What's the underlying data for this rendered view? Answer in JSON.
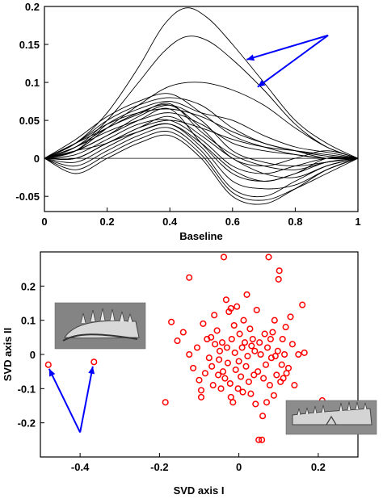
{
  "chart_data": [
    {
      "type": "line",
      "title": "",
      "xlabel": "Baseline",
      "ylabel": "",
      "xlim": [
        0,
        1
      ],
      "ylim": [
        -0.07,
        0.2
      ],
      "x_ticks": [
        "0",
        "0.2",
        "0.4",
        "0.6",
        "0.8",
        "1"
      ],
      "y_ticks": [
        "-0.05",
        "0",
        "0.05",
        "0.1",
        "0.15",
        "0.2"
      ],
      "line_color": "#000000",
      "arrow_color": "#0000ff",
      "grid": false,
      "series": [
        {
          "x": [
            0,
            0.1,
            0.2,
            0.3,
            0.38,
            0.45,
            0.52,
            0.6,
            0.7,
            0.8,
            0.9,
            1.0
          ],
          "y": [
            0,
            0.02,
            0.06,
            0.12,
            0.175,
            0.198,
            0.185,
            0.15,
            0.1,
            0.05,
            0.02,
            0
          ]
        },
        {
          "x": [
            0,
            0.1,
            0.2,
            0.3,
            0.38,
            0.45,
            0.52,
            0.6,
            0.7,
            0.8,
            0.9,
            1.0
          ],
          "y": [
            0,
            0.015,
            0.05,
            0.1,
            0.14,
            0.16,
            0.155,
            0.13,
            0.09,
            0.045,
            0.015,
            0
          ]
        },
        {
          "x": [
            0,
            0.1,
            0.2,
            0.3,
            0.4,
            0.5,
            0.6,
            0.7,
            0.8,
            0.9,
            1.0
          ],
          "y": [
            0,
            0.01,
            0.04,
            0.07,
            0.095,
            0.1,
            0.09,
            0.07,
            0.04,
            0.015,
            0
          ]
        },
        {
          "x": [
            0,
            0.1,
            0.2,
            0.3,
            0.4,
            0.5,
            0.6,
            0.7,
            0.8,
            0.9,
            1.0
          ],
          "y": [
            0,
            0.01,
            0.045,
            0.065,
            0.075,
            0.06,
            0.05,
            0.03,
            0.015,
            0.008,
            0
          ]
        },
        {
          "x": [
            0,
            0.1,
            0.2,
            0.3,
            0.4,
            0.5,
            0.6,
            0.7,
            0.8,
            0.9,
            1.0
          ],
          "y": [
            0,
            0.02,
            0.04,
            0.06,
            0.07,
            0.04,
            0.0,
            -0.01,
            0.0,
            0.01,
            0
          ]
        },
        {
          "x": [
            0,
            0.1,
            0.2,
            0.3,
            0.4,
            0.5,
            0.6,
            0.7,
            0.8,
            0.9,
            1.0
          ],
          "y": [
            0,
            0.01,
            0.03,
            0.05,
            0.065,
            0.02,
            -0.02,
            -0.03,
            -0.02,
            0.0,
            0
          ]
        },
        {
          "x": [
            0,
            0.1,
            0.2,
            0.3,
            0.4,
            0.5,
            0.6,
            0.7,
            0.8,
            0.9,
            1.0
          ],
          "y": [
            0,
            -0.01,
            0.01,
            0.03,
            0.04,
            0.01,
            -0.04,
            -0.05,
            -0.03,
            -0.01,
            0
          ]
        },
        {
          "x": [
            0,
            0.1,
            0.2,
            0.3,
            0.4,
            0.5,
            0.6,
            0.7,
            0.8,
            0.9,
            1.0
          ],
          "y": [
            0,
            0.02,
            0.05,
            0.07,
            0.08,
            0.07,
            0.04,
            0.02,
            0.01,
            0.0,
            0
          ]
        },
        {
          "x": [
            0,
            0.1,
            0.2,
            0.3,
            0.4,
            0.5,
            0.6,
            0.7,
            0.8,
            0.9,
            1.0
          ],
          "y": [
            0,
            0.0,
            0.02,
            0.04,
            0.055,
            0.03,
            0.0,
            -0.02,
            -0.025,
            -0.01,
            0
          ]
        },
        {
          "x": [
            0,
            0.1,
            0.2,
            0.3,
            0.4,
            0.5,
            0.6,
            0.7,
            0.8,
            0.9,
            1.0
          ],
          "y": [
            0,
            0.015,
            0.035,
            0.05,
            0.06,
            0.045,
            0.02,
            0.01,
            0.005,
            0.0,
            0
          ]
        },
        {
          "x": [
            0,
            0.1,
            0.2,
            0.3,
            0.4,
            0.5,
            0.6,
            0.7,
            0.8,
            0.9,
            1.0
          ],
          "y": [
            0,
            -0.02,
            0.0,
            0.02,
            0.03,
            0.0,
            -0.05,
            -0.06,
            -0.04,
            -0.015,
            0
          ]
        },
        {
          "x": [
            0,
            0.1,
            0.2,
            0.3,
            0.4,
            0.5,
            0.6,
            0.7,
            0.8,
            0.9,
            1.0
          ],
          "y": [
            0,
            0.025,
            0.055,
            0.075,
            0.085,
            0.06,
            0.03,
            0.015,
            0.005,
            0.0,
            0
          ]
        },
        {
          "x": [
            0,
            0.1,
            0.2,
            0.3,
            0.4,
            0.5,
            0.6,
            0.7,
            0.8,
            0.9,
            1.0
          ],
          "y": [
            0,
            0.005,
            0.025,
            0.045,
            0.05,
            0.025,
            -0.01,
            -0.02,
            -0.01,
            0.0,
            0
          ]
        },
        {
          "x": [
            0,
            0.1,
            0.2,
            0.3,
            0.4,
            0.5,
            0.6,
            0.7,
            0.8,
            0.9,
            1.0
          ],
          "y": [
            0,
            0.01,
            0.03,
            0.055,
            0.07,
            0.05,
            0.01,
            -0.005,
            -0.01,
            -0.005,
            0
          ]
        },
        {
          "x": [
            0,
            0.1,
            0.2,
            0.3,
            0.4,
            0.5,
            0.6,
            0.7,
            0.8,
            0.9,
            1.0
          ],
          "y": [
            0,
            -0.005,
            0.015,
            0.035,
            0.045,
            0.015,
            -0.03,
            -0.04,
            -0.035,
            -0.015,
            0
          ]
        },
        {
          "x": [
            0,
            0.1,
            0.2,
            0.3,
            0.4,
            0.5,
            0.6,
            0.7,
            0.8,
            0.9,
            1.0
          ],
          "y": [
            0,
            0.02,
            0.045,
            0.06,
            0.065,
            0.055,
            0.035,
            0.02,
            0.01,
            0.003,
            0
          ]
        },
        {
          "x": [
            0,
            0.1,
            0.2,
            0.3,
            0.4,
            0.5,
            0.6,
            0.7,
            0.8,
            0.9,
            1.0
          ],
          "y": [
            0,
            0.0,
            0.02,
            0.035,
            0.045,
            0.02,
            -0.015,
            -0.03,
            -0.02,
            -0.005,
            0
          ]
        },
        {
          "x": [
            0,
            0.1,
            0.2,
            0.3,
            0.4,
            0.5,
            0.6,
            0.7,
            0.8,
            0.9,
            1.0
          ],
          "y": [
            0,
            0.015,
            0.04,
            0.058,
            0.072,
            0.035,
            0.005,
            -0.01,
            -0.015,
            -0.005,
            0
          ]
        },
        {
          "x": [
            0,
            0.1,
            0.2,
            0.3,
            0.4,
            0.5,
            0.6,
            0.7,
            0.8,
            0.9,
            1.0
          ],
          "y": [
            0,
            0.01,
            0.02,
            0.04,
            0.05,
            0.04,
            0.025,
            0.015,
            0.01,
            0.005,
            0
          ]
        },
        {
          "x": [
            0,
            0.1,
            0.2,
            0.3,
            0.4,
            0.5,
            0.6,
            0.7,
            0.8,
            0.9,
            1.0
          ],
          "y": [
            0,
            -0.015,
            0.005,
            0.025,
            0.035,
            0.005,
            -0.045,
            -0.055,
            -0.04,
            -0.02,
            0
          ]
        }
      ]
    },
    {
      "type": "scatter",
      "title": "",
      "xlabel": "SVD axis I",
      "ylabel": "SVD axis II",
      "xlim": [
        -0.5,
        0.3
      ],
      "ylim": [
        -0.3,
        0.3
      ],
      "x_ticks": [
        "-0.4",
        "-0.2",
        "0",
        "0.2"
      ],
      "y_ticks": [
        "-0.2",
        "-0.1",
        "0",
        "0.1",
        "0.2"
      ],
      "marker_color": "#ff0000",
      "arrow_color": "#0000ff",
      "grid": false,
      "points": [
        [
          -0.48,
          -0.03
        ],
        [
          -0.365,
          -0.022
        ],
        [
          -0.185,
          -0.14
        ],
        [
          -0.17,
          0.095
        ],
        [
          -0.155,
          0.04
        ],
        [
          -0.14,
          0.065
        ],
        [
          -0.125,
          0.225
        ],
        [
          -0.125,
          0.0
        ],
        [
          -0.115,
          -0.04
        ],
        [
          -0.105,
          0.02
        ],
        [
          -0.1,
          -0.075
        ],
        [
          -0.095,
          -0.105
        ],
        [
          -0.095,
          -0.125
        ],
        [
          -0.09,
          0.09
        ],
        [
          -0.085,
          -0.055
        ],
        [
          -0.08,
          0.045
        ],
        [
          -0.075,
          -0.01
        ],
        [
          -0.07,
          0.05
        ],
        [
          -0.068,
          -0.035
        ],
        [
          -0.065,
          -0.09
        ],
        [
          -0.062,
          0.115
        ],
        [
          -0.06,
          0.03
        ],
        [
          -0.055,
          0.07
        ],
        [
          -0.052,
          -0.06
        ],
        [
          -0.05,
          -0.015
        ],
        [
          -0.048,
          0.01
        ],
        [
          -0.045,
          -0.1
        ],
        [
          -0.042,
          0.035
        ],
        [
          -0.04,
          -0.05
        ],
        [
          -0.038,
          0.285
        ],
        [
          -0.035,
          -0.07
        ],
        [
          -0.032,
          0.16
        ],
        [
          -0.03,
          0.02
        ],
        [
          -0.028,
          -0.025
        ],
        [
          -0.025,
          0.125
        ],
        [
          -0.022,
          -0.085
        ],
        [
          -0.02,
          -0.125
        ],
        [
          -0.02,
          0.135
        ],
        [
          -0.018,
          0.045
        ],
        [
          -0.015,
          -0.14
        ],
        [
          -0.012,
          0.085
        ],
        [
          -0.01,
          0.005
        ],
        [
          -0.008,
          -0.045
        ],
        [
          -0.005,
          0.14
        ],
        [
          -0.002,
          -0.1
        ],
        [
          0.0,
          -0.02
        ],
        [
          0.002,
          0.06
        ],
        [
          0.005,
          -0.065
        ],
        [
          0.008,
          0.02
        ],
        [
          0.01,
          -0.11
        ],
        [
          0.012,
          0.1
        ],
        [
          0.015,
          0.035
        ],
        [
          0.018,
          -0.035
        ],
        [
          0.02,
          0.175
        ],
        [
          0.022,
          -0.005
        ],
        [
          0.025,
          -0.08
        ],
        [
          0.028,
          0.075
        ],
        [
          0.03,
          -0.115
        ],
        [
          0.032,
          0.025
        ],
        [
          0.035,
          0.045
        ],
        [
          0.038,
          -0.06
        ],
        [
          0.04,
          0.01
        ],
        [
          0.042,
          -0.145
        ],
        [
          0.045,
          0.13
        ],
        [
          0.048,
          -0.05
        ],
        [
          0.05,
          -0.25
        ],
        [
          0.052,
          0.035
        ],
        [
          0.055,
          0.0
        ],
        [
          0.058,
          -0.25
        ],
        [
          0.06,
          -0.18
        ],
        [
          0.062,
          -0.07
        ],
        [
          0.065,
          0.06
        ],
        [
          0.068,
          -0.03
        ],
        [
          0.07,
          -0.14
        ],
        [
          0.072,
          0.02
        ],
        [
          0.075,
          0.285
        ],
        [
          0.078,
          -0.09
        ],
        [
          0.08,
          0.045
        ],
        [
          0.082,
          -0.01
        ],
        [
          0.085,
          0.065
        ],
        [
          0.088,
          -0.12
        ],
        [
          0.09,
          0.1
        ],
        [
          0.092,
          -0.005
        ],
        [
          0.095,
          -0.06
        ],
        [
          0.098,
          0.01
        ],
        [
          0.1,
          0.22
        ],
        [
          0.102,
          0.245
        ],
        [
          0.105,
          -0.08
        ],
        [
          0.108,
          -0.03
        ],
        [
          0.11,
          0.045
        ],
        [
          0.112,
          -0.07
        ],
        [
          0.115,
          0.0
        ],
        [
          0.118,
          0.08
        ],
        [
          0.12,
          -0.055
        ],
        [
          0.125,
          -0.04
        ],
        [
          0.13,
          0.11
        ],
        [
          0.135,
          0.03
        ],
        [
          0.14,
          -0.09
        ],
        [
          0.15,
          0.0
        ],
        [
          0.16,
          0.145
        ],
        [
          0.165,
          0.005
        ],
        [
          0.21,
          -0.135
        ]
      ]
    }
  ]
}
